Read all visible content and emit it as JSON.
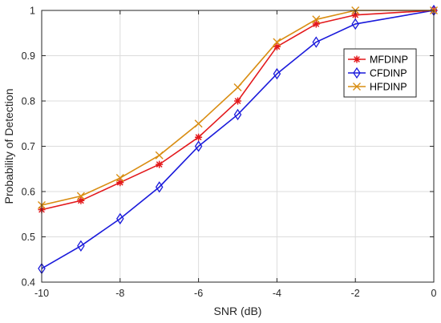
{
  "chart_data": {
    "type": "line",
    "xlabel": "SNR (dB)",
    "ylabel": "Probability of Detection",
    "xlim": [
      -10,
      0
    ],
    "ylim": [
      0.4,
      1
    ],
    "xticks": [
      -10,
      -8,
      -6,
      -4,
      -2,
      0
    ],
    "yticks": [
      0.4,
      0.5,
      0.6,
      0.7,
      0.8,
      0.9,
      1
    ],
    "grid": true,
    "legend_position": "top-right",
    "series": [
      {
        "name": "MFDINP",
        "color": "#e3191c",
        "marker": "asterisk",
        "x": [
          -10,
          -9,
          -8,
          -7,
          -6,
          -5,
          -4,
          -3,
          -2,
          0
        ],
        "y": [
          0.56,
          0.58,
          0.62,
          0.66,
          0.72,
          0.8,
          0.92,
          0.97,
          0.99,
          1.0
        ]
      },
      {
        "name": "CFDINP",
        "color": "#1a1adb",
        "marker": "diamond",
        "x": [
          -10,
          -9,
          -8,
          -7,
          -6,
          -5,
          -4,
          -3,
          -2,
          0
        ],
        "y": [
          0.43,
          0.48,
          0.54,
          0.61,
          0.7,
          0.77,
          0.86,
          0.93,
          0.97,
          1.0
        ]
      },
      {
        "name": "HFDINP",
        "color": "#d98d12",
        "marker": "x",
        "x": [
          -10,
          -9,
          -8,
          -7,
          -6,
          -5,
          -4,
          -3,
          -2,
          0
        ],
        "y": [
          0.57,
          0.59,
          0.63,
          0.68,
          0.75,
          0.83,
          0.93,
          0.98,
          1.0,
          1.0
        ]
      }
    ]
  }
}
